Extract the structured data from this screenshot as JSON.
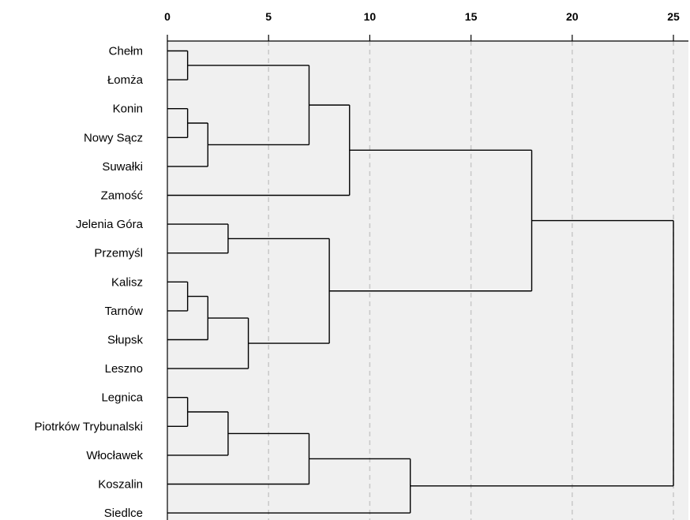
{
  "chart_data": {
    "type": "dendrogram",
    "orientation": "horizontal",
    "xlim": [
      0,
      25
    ],
    "x_ticks": [
      0,
      5,
      10,
      15,
      20,
      25
    ],
    "x_tick_labels": [
      "0",
      "5",
      "10",
      "15",
      "20",
      "25"
    ],
    "axis_position": "top",
    "grid": "vertical dashed",
    "leaves": [
      "Chełm",
      "Łomża",
      "Konin",
      "Nowy Sącz",
      "Suwałki",
      "Zamość",
      "Jelenia Góra",
      "Przemyśl",
      "Kalisz",
      "Tarnów",
      "Słupsk",
      "Leszno",
      "Legnica",
      "Piotrków Trybunalski",
      "Włocławek",
      "Koszalin",
      "Siedlce"
    ],
    "merges": [
      {
        "id": "m1",
        "left": "L0",
        "right": "L1",
        "height": 1
      },
      {
        "id": "m2",
        "left": "L2",
        "right": "L3",
        "height": 1
      },
      {
        "id": "m3",
        "left": "m2",
        "right": "L4",
        "height": 2
      },
      {
        "id": "m4",
        "left": "m1",
        "right": "m3",
        "height": 7
      },
      {
        "id": "m5",
        "left": "m4",
        "right": "L5",
        "height": 9
      },
      {
        "id": "m6",
        "left": "L6",
        "right": "L7",
        "height": 3
      },
      {
        "id": "m7",
        "left": "L8",
        "right": "L9",
        "height": 1
      },
      {
        "id": "m8",
        "left": "m7",
        "right": "L10",
        "height": 2
      },
      {
        "id": "m9",
        "left": "m8",
        "right": "L11",
        "height": 4
      },
      {
        "id": "m10",
        "left": "m6",
        "right": "m9",
        "height": 8
      },
      {
        "id": "m11",
        "left": "m5",
        "right": "m10",
        "height": 18
      },
      {
        "id": "m12",
        "left": "L12",
        "right": "L13",
        "height": 1
      },
      {
        "id": "m13",
        "left": "m12",
        "right": "L14",
        "height": 3
      },
      {
        "id": "m14",
        "left": "m13",
        "right": "L15",
        "height": 7
      },
      {
        "id": "m15",
        "left": "m14",
        "right": "L16",
        "height": 12
      },
      {
        "id": "m16",
        "left": "m11",
        "right": "m15",
        "height": 25
      }
    ]
  },
  "colors": {
    "plot_background": "#f0f0f0",
    "grid": "#c8c8c8",
    "links": "#000000"
  }
}
